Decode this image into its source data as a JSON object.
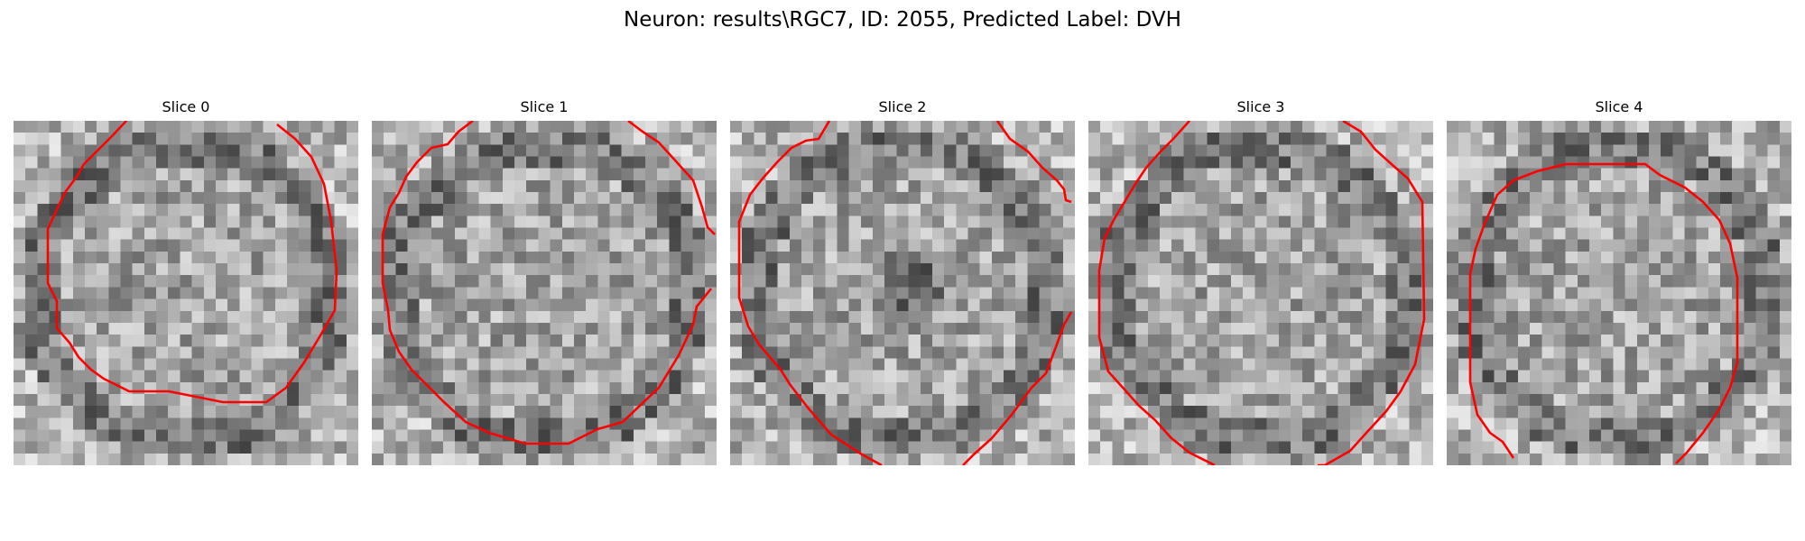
{
  "figure": {
    "title": "Neuron: results\\RGC7, ID: 2055, Predicted Label: DVH"
  },
  "slices": [
    {
      "title": "Slice 0",
      "contour_color": "#ff0000"
    },
    {
      "title": "Slice 1",
      "contour_color": "#ff0000"
    },
    {
      "title": "Slice 2",
      "contour_color": "#ff0000"
    },
    {
      "title": "Slice 3",
      "contour_color": "#ff0000"
    },
    {
      "title": "Slice 4",
      "contour_color": "#ff0000"
    }
  ]
}
